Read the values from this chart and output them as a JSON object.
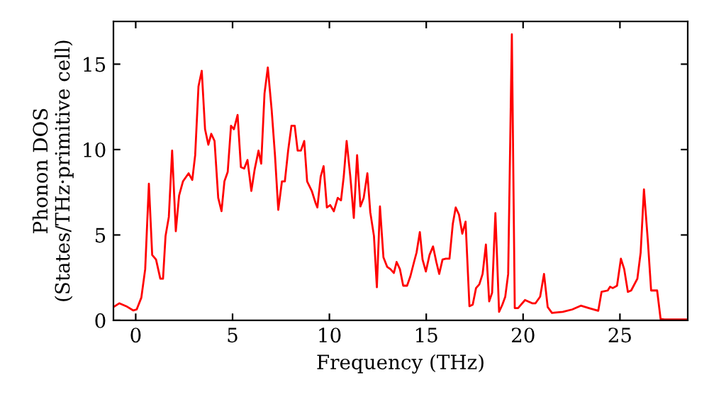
{
  "chart_data": {
    "type": "line",
    "xlabel": "Frequency (THz)",
    "ylabel": "Phonon DOS\n(States/THz·primitive cell)",
    "xlim": [
      -1.15,
      28.5
    ],
    "ylim": [
      0,
      17.5
    ],
    "xticks": [
      0,
      5,
      10,
      15,
      20,
      25
    ],
    "yticks": [
      0,
      5,
      10,
      15
    ],
    "grid": false,
    "legend": false,
    "marker": "none",
    "line_style": "solid",
    "series": [
      {
        "color": "#ff0000",
        "x": [
          -1.15,
          -0.85,
          -0.49,
          -0.12,
          0.05,
          0.29,
          0.49,
          0.68,
          0.85,
          1.05,
          1.27,
          1.41,
          1.54,
          1.71,
          1.88,
          2.07,
          2.24,
          2.44,
          2.73,
          2.92,
          3.07,
          3.24,
          3.41,
          3.58,
          3.75,
          3.9,
          4.07,
          4.26,
          4.43,
          4.58,
          4.75,
          4.92,
          5.07,
          5.26,
          5.43,
          5.6,
          5.77,
          5.97,
          6.14,
          6.34,
          6.48,
          6.65,
          6.82,
          7.02,
          7.19,
          7.36,
          7.55,
          7.7,
          7.87,
          8.04,
          8.21,
          8.36,
          8.53,
          8.7,
          8.85,
          9.09,
          9.28,
          9.38,
          9.55,
          9.7,
          9.87,
          10.04,
          10.23,
          10.43,
          10.6,
          10.74,
          10.89,
          11.08,
          11.26,
          11.43,
          11.6,
          11.77,
          11.96,
          12.11,
          12.3,
          12.45,
          12.61,
          12.79,
          12.98,
          13.15,
          13.33,
          13.47,
          13.64,
          13.81,
          14.01,
          14.18,
          14.37,
          14.5,
          14.67,
          14.81,
          14.98,
          15.17,
          15.35,
          15.52,
          15.67,
          15.84,
          16.01,
          16.2,
          16.37,
          16.52,
          16.69,
          16.86,
          17.03,
          17.23,
          17.4,
          17.57,
          17.74,
          17.91,
          18.08,
          18.25,
          18.4,
          18.57,
          18.76,
          18.93,
          19.08,
          19.23,
          19.42,
          19.57,
          19.74,
          20.1,
          20.47,
          20.64,
          20.88,
          21.08,
          21.27,
          21.49,
          22.05,
          22.54,
          22.98,
          23.4,
          23.88,
          24.05,
          24.37,
          24.49,
          24.63,
          24.85,
          25.05,
          25.22,
          25.41,
          25.58,
          25.9,
          26.07,
          26.24,
          26.44,
          26.61,
          26.92,
          27.1,
          27.29,
          28.5
        ],
        "values": [
          0.78,
          1.0,
          0.83,
          0.58,
          0.64,
          1.33,
          3.0,
          8.0,
          3.83,
          3.56,
          2.44,
          2.44,
          4.94,
          6.06,
          9.94,
          5.22,
          7.31,
          8.14,
          8.61,
          8.22,
          9.67,
          13.69,
          14.61,
          11.19,
          10.28,
          10.92,
          10.5,
          7.17,
          6.39,
          8.14,
          8.69,
          11.39,
          11.19,
          12.03,
          8.97,
          8.89,
          9.39,
          7.58,
          8.83,
          9.94,
          9.17,
          13.28,
          14.81,
          12.31,
          9.67,
          6.47,
          8.14,
          8.14,
          9.94,
          11.39,
          11.39,
          9.94,
          9.94,
          10.5,
          8.14,
          7.58,
          6.89,
          6.61,
          8.42,
          9.03,
          6.61,
          6.75,
          6.39,
          7.17,
          7.03,
          8.42,
          10.5,
          8.42,
          6.0,
          9.67,
          6.67,
          7.17,
          8.61,
          6.33,
          4.94,
          1.94,
          6.67,
          3.69,
          3.14,
          3.0,
          2.78,
          3.42,
          3.0,
          2.03,
          2.03,
          2.58,
          3.42,
          3.97,
          5.17,
          3.56,
          2.86,
          3.83,
          4.33,
          3.42,
          2.72,
          3.56,
          3.61,
          3.61,
          5.64,
          6.61,
          6.19,
          5.08,
          5.78,
          0.83,
          0.92,
          1.89,
          2.11,
          2.72,
          4.44,
          1.11,
          1.61,
          6.28,
          0.5,
          0.92,
          1.39,
          2.72,
          16.75,
          0.72,
          0.72,
          1.19,
          1.0,
          1.0,
          1.39,
          2.72,
          0.78,
          0.44,
          0.5,
          0.64,
          0.86,
          0.72,
          0.56,
          1.67,
          1.75,
          1.97,
          1.89,
          2.03,
          3.61,
          3.0,
          1.67,
          1.75,
          2.44,
          3.97,
          7.67,
          4.67,
          1.75,
          1.75,
          0.08,
          0.05,
          0.05
        ]
      }
    ]
  }
}
